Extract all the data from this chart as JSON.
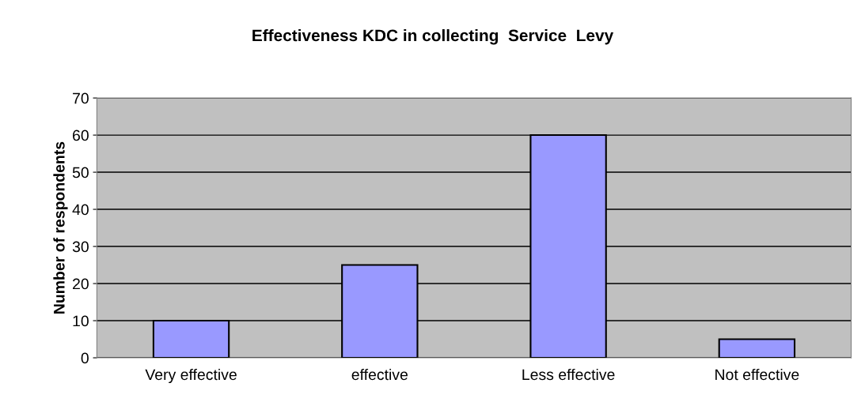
{
  "chart_data": {
    "type": "bar",
    "title": "Effectiveness KDC in collecting  Service  Levy",
    "ylabel": "Number of respondents",
    "categories": [
      "Very effective",
      "effective",
      "Less effective",
      "Not effective"
    ],
    "values": [
      10,
      25,
      60,
      5
    ],
    "color": "#9999ff",
    "ylim": [
      0,
      70
    ],
    "yticks": [
      0,
      10,
      20,
      30,
      40,
      50,
      60,
      70
    ],
    "grid": "y",
    "legend": false
  }
}
